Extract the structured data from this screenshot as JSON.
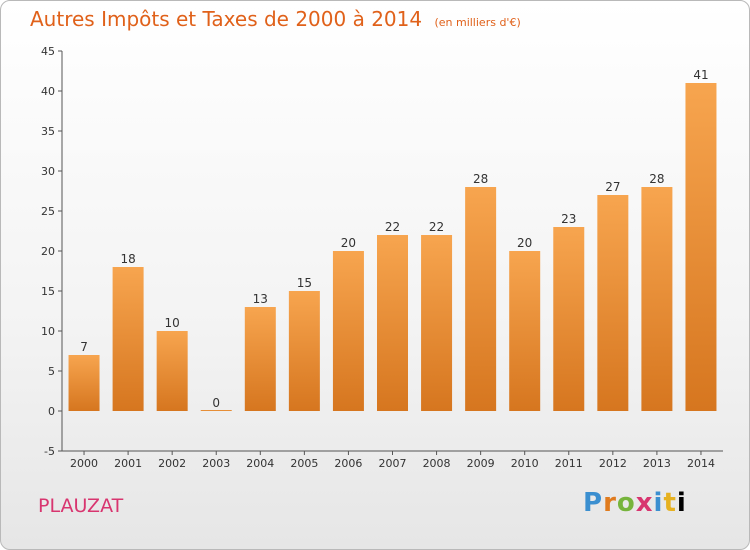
{
  "header": {
    "title": "Autres Impôts et Taxes de 2000 à 2014",
    "unit": "(en milliers d'€)"
  },
  "commune": "PLAUZAT",
  "logo": {
    "letters": [
      "P",
      "r",
      "o",
      "x",
      "i",
      "t",
      "i"
    ]
  },
  "colors": {
    "bar_light": "#f7a54f",
    "bar_dark": "#d6761f",
    "title": "#e0611a",
    "commune": "#d8356f"
  },
  "chart_data": {
    "type": "bar",
    "title": "Autres Impôts et Taxes de 2000 à 2014",
    "subtitle": "(en milliers d'€)",
    "xlabel": "",
    "ylabel": "",
    "categories": [
      "2000",
      "2001",
      "2002",
      "2003",
      "2004",
      "2005",
      "2006",
      "2007",
      "2008",
      "2009",
      "2010",
      "2011",
      "2012",
      "2013",
      "2014"
    ],
    "values": [
      7,
      18,
      10,
      0,
      13,
      15,
      20,
      22,
      22,
      28,
      20,
      23,
      27,
      28,
      41
    ],
    "ylim": [
      -5,
      45
    ],
    "yticks": [
      -5,
      0,
      5,
      10,
      15,
      20,
      25,
      30,
      35,
      40,
      45
    ],
    "grid": false,
    "legend": "none"
  }
}
